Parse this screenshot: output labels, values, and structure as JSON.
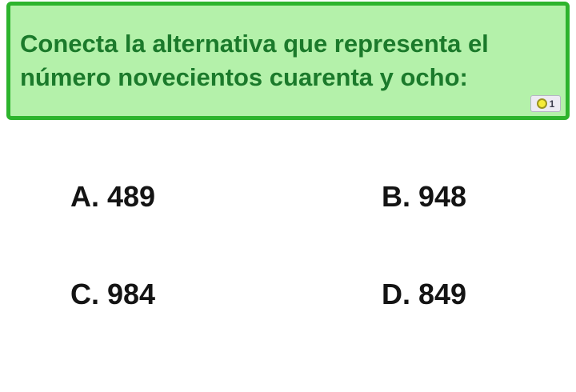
{
  "question": {
    "text": "Conecta la alternativa que representa el número novecientos cuarenta y ocho:",
    "badge": {
      "icon": "coin-icon",
      "count": "1"
    },
    "colors": {
      "box_background": "#b4f1aa",
      "box_border": "#2db42d",
      "text": "#1b7a2b",
      "coin": "#f6ec39",
      "coin_ring": "#9a941f"
    }
  },
  "options": [
    {
      "label": "A.",
      "value": "489"
    },
    {
      "label": "B.",
      "value": "948"
    },
    {
      "label": "C.",
      "value": "984"
    },
    {
      "label": "D.",
      "value": "849"
    }
  ]
}
